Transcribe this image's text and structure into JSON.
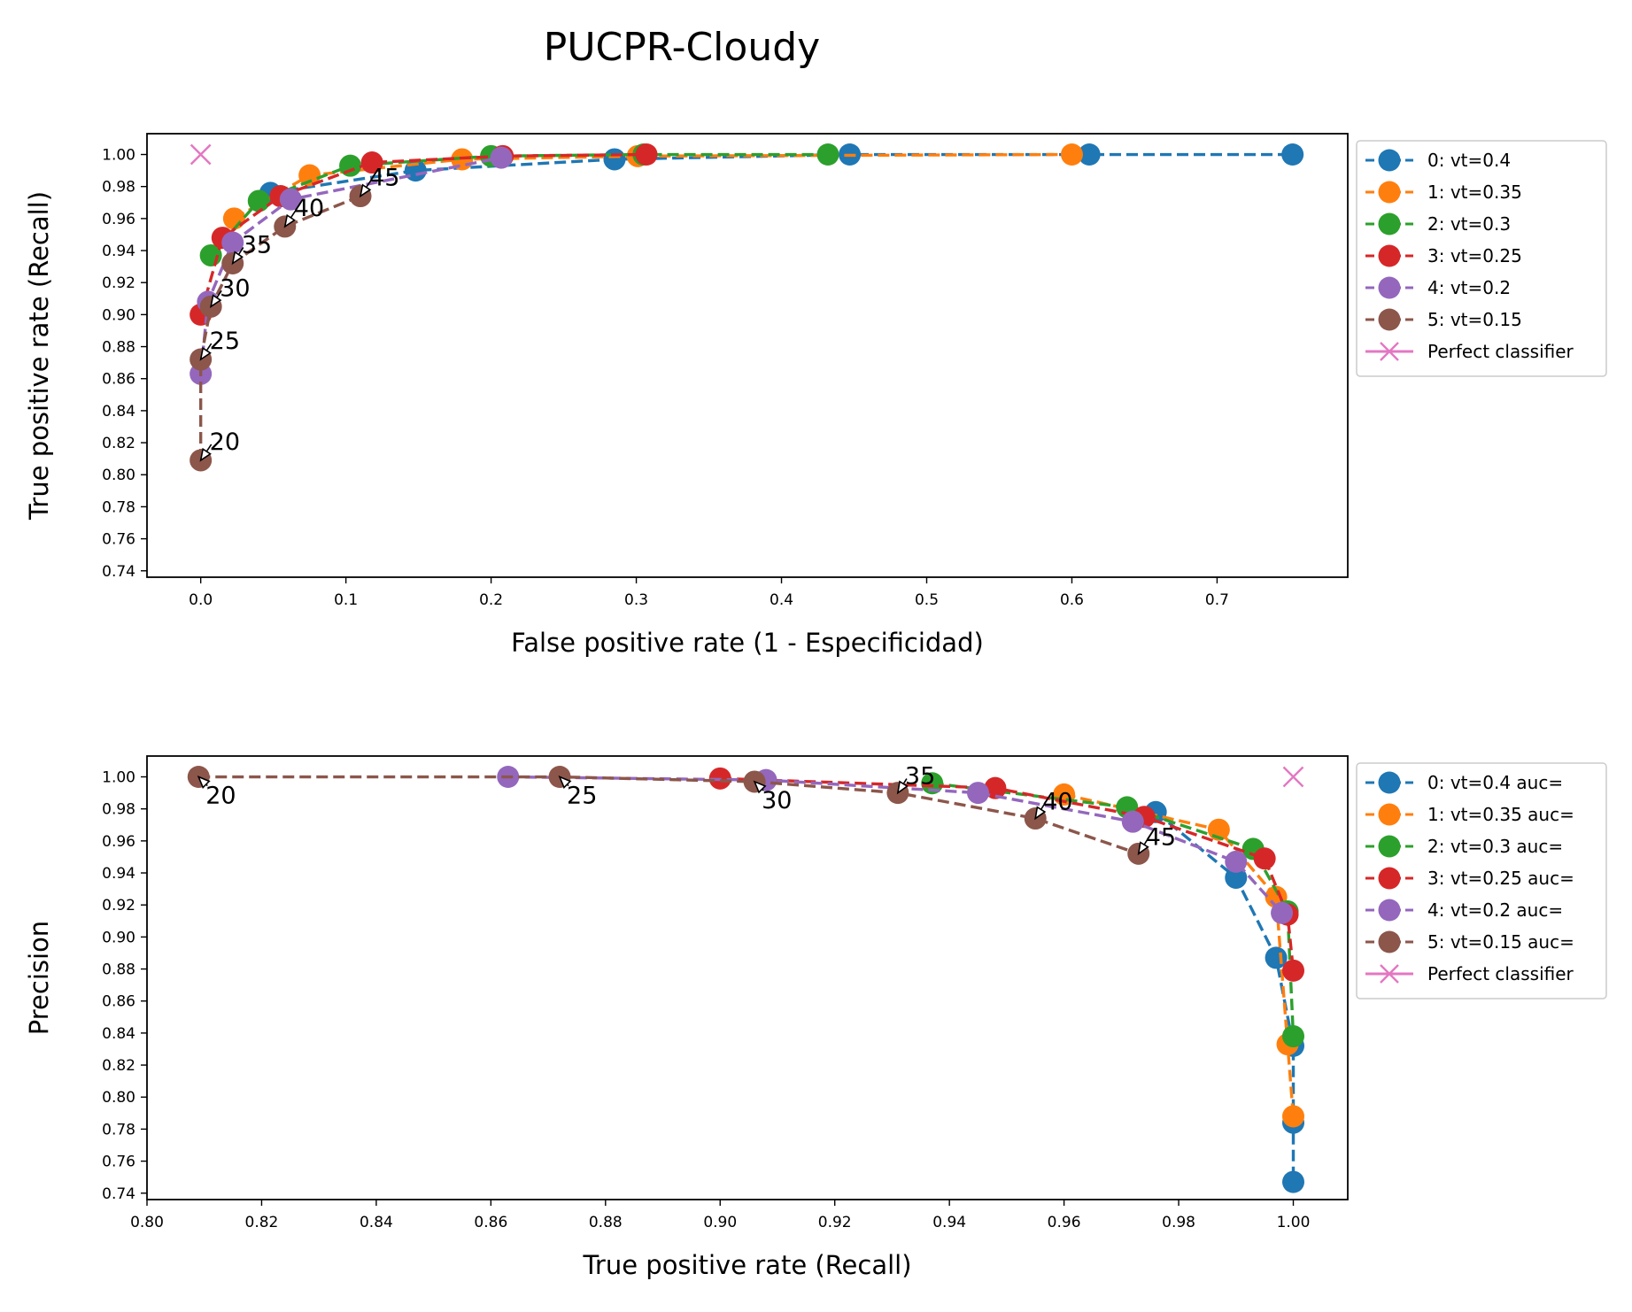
{
  "figure_title": "PUCPR-Cloudy",
  "colors": {
    "s0": "#1f77b4",
    "s1": "#ff7f0e",
    "s2": "#2ca02c",
    "s3": "#d62728",
    "s4": "#9467bd",
    "s5": "#8c564b",
    "perfect": "#e377c2"
  },
  "chart_data": [
    {
      "type": "line",
      "title": "",
      "xlabel": "False positive rate (1 - Especificidad)",
      "ylabel": "True positive rate (Recall)",
      "xlim": [
        -0.037,
        0.79
      ],
      "ylim": [
        0.736,
        1.013
      ],
      "xticks": [
        0.0,
        0.1,
        0.2,
        0.3,
        0.4,
        0.5,
        0.6,
        0.7
      ],
      "xtick_labels": [
        "0.0",
        "0.1",
        "0.2",
        "0.3",
        "0.4",
        "0.5",
        "0.6",
        "0.7"
      ],
      "yticks": [
        0.74,
        0.76,
        0.78,
        0.8,
        0.82,
        0.84,
        0.86,
        0.88,
        0.9,
        0.92,
        0.94,
        0.96,
        0.98,
        1.0
      ],
      "ytick_labels": [
        "0.74",
        "0.76",
        "0.78",
        "0.80",
        "0.82",
        "0.84",
        "0.86",
        "0.88",
        "0.90",
        "0.92",
        "0.94",
        "0.96",
        "0.98",
        "1.00"
      ],
      "grid": false,
      "legend_position": "outside-right",
      "series": [
        {
          "name": "0: vt=0.4",
          "x": [
            0.048,
            0.148,
            0.285,
            0.447,
            0.612,
            0.752
          ],
          "y": [
            0.976,
            0.99,
            0.997,
            1.0,
            1.0,
            1.0
          ]
        },
        {
          "name": "1: vt=0.35",
          "x": [
            0.023,
            0.075,
            0.18,
            0.301,
            0.6
          ],
          "y": [
            0.96,
            0.987,
            0.997,
            0.999,
            1.0
          ]
        },
        {
          "name": "2: vt=0.3",
          "x": [
            0.007,
            0.04,
            0.103,
            0.2,
            0.305,
            0.432
          ],
          "y": [
            0.937,
            0.971,
            0.993,
            0.999,
            1.0,
            1.0
          ]
        },
        {
          "name": "3: vt=0.25",
          "x": [
            0.0,
            0.015,
            0.055,
            0.118,
            0.208,
            0.307
          ],
          "y": [
            0.9,
            0.948,
            0.974,
            0.995,
            0.999,
            1.0
          ]
        },
        {
          "name": "4: vt=0.2",
          "x": [
            0.0,
            0.005,
            0.022,
            0.062,
            0.207
          ],
          "y": [
            0.863,
            0.908,
            0.945,
            0.972,
            0.998
          ]
        },
        {
          "name": "5: vt=0.15",
          "x": [
            0.0,
            0.0,
            0.007,
            0.022,
            0.058,
            0.11
          ],
          "y": [
            0.809,
            0.872,
            0.905,
            0.932,
            0.955,
            0.974
          ]
        },
        {
          "name": "Perfect classifier",
          "x": [
            0.0
          ],
          "y": [
            1.0
          ],
          "marker": "x"
        }
      ],
      "annotations": [
        {
          "text": "20",
          "x": 0.0,
          "y": 0.809
        },
        {
          "text": "25",
          "x": 0.0,
          "y": 0.872
        },
        {
          "text": "30",
          "x": 0.007,
          "y": 0.905
        },
        {
          "text": "35",
          "x": 0.022,
          "y": 0.932
        },
        {
          "text": "40",
          "x": 0.058,
          "y": 0.955
        },
        {
          "text": "45",
          "x": 0.11,
          "y": 0.974
        }
      ]
    },
    {
      "type": "line",
      "title": "",
      "xlabel": "True positive rate (Recall)",
      "ylabel": "Precision",
      "xlim": [
        0.8,
        1.0095
      ],
      "ylim": [
        0.736,
        1.013
      ],
      "xticks": [
        0.8,
        0.82,
        0.84,
        0.86,
        0.88,
        0.9,
        0.92,
        0.94,
        0.96,
        0.98,
        1.0
      ],
      "xtick_labels": [
        "0.80",
        "0.82",
        "0.84",
        "0.86",
        "0.88",
        "0.90",
        "0.92",
        "0.94",
        "0.96",
        "0.98",
        "1.00"
      ],
      "yticks": [
        0.74,
        0.76,
        0.78,
        0.8,
        0.82,
        0.84,
        0.86,
        0.88,
        0.9,
        0.92,
        0.94,
        0.96,
        0.98,
        1.0
      ],
      "ytick_labels": [
        "0.74",
        "0.76",
        "0.78",
        "0.80",
        "0.82",
        "0.84",
        "0.86",
        "0.88",
        "0.90",
        "0.92",
        "0.94",
        "0.96",
        "0.98",
        "1.00"
      ],
      "grid": false,
      "legend_position": "outside-right",
      "series": [
        {
          "name": "0: vt=0.4 auc=",
          "x": [
            0.976,
            0.99,
            0.997,
            1.0,
            1.0,
            1.0
          ],
          "y": [
            0.978,
            0.937,
            0.887,
            0.832,
            0.784,
            0.747
          ]
        },
        {
          "name": "1: vt=0.35 auc=",
          "x": [
            0.96,
            0.987,
            0.997,
            0.999,
            1.0
          ],
          "y": [
            0.989,
            0.967,
            0.925,
            0.833,
            0.788
          ]
        },
        {
          "name": "2: vt=0.3 auc=",
          "x": [
            0.937,
            0.971,
            0.993,
            0.999,
            1.0
          ],
          "y": [
            0.996,
            0.981,
            0.955,
            0.916,
            0.838
          ]
        },
        {
          "name": "3: vt=0.25 auc=",
          "x": [
            0.9,
            0.948,
            0.974,
            0.995,
            0.999,
            1.0
          ],
          "y": [
            0.999,
            0.993,
            0.975,
            0.949,
            0.914,
            0.879
          ]
        },
        {
          "name": "4: vt=0.2 auc=",
          "x": [
            0.863,
            0.908,
            0.945,
            0.972,
            0.99,
            0.998
          ],
          "y": [
            1.0,
            0.998,
            0.99,
            0.972,
            0.947,
            0.915
          ]
        },
        {
          "name": "5: vt=0.15 auc=",
          "x": [
            0.809,
            0.872,
            0.906,
            0.931,
            0.955,
            0.973
          ],
          "y": [
            1.0,
            1.0,
            0.997,
            0.99,
            0.974,
            0.952
          ]
        },
        {
          "name": "Perfect classifier",
          "x": [
            1.0
          ],
          "y": [
            1.0
          ],
          "marker": "x"
        }
      ],
      "annotations": [
        {
          "text": "20",
          "x": 0.809,
          "y": 1.0,
          "dir": "below"
        },
        {
          "text": "25",
          "x": 0.872,
          "y": 1.0,
          "dir": "below"
        },
        {
          "text": "30",
          "x": 0.906,
          "y": 0.997,
          "dir": "below"
        },
        {
          "text": "35",
          "x": 0.931,
          "y": 0.99,
          "dir": "above"
        },
        {
          "text": "40",
          "x": 0.955,
          "y": 0.974,
          "dir": "above"
        },
        {
          "text": "45",
          "x": 0.973,
          "y": 0.952,
          "dir": "above"
        }
      ]
    }
  ]
}
